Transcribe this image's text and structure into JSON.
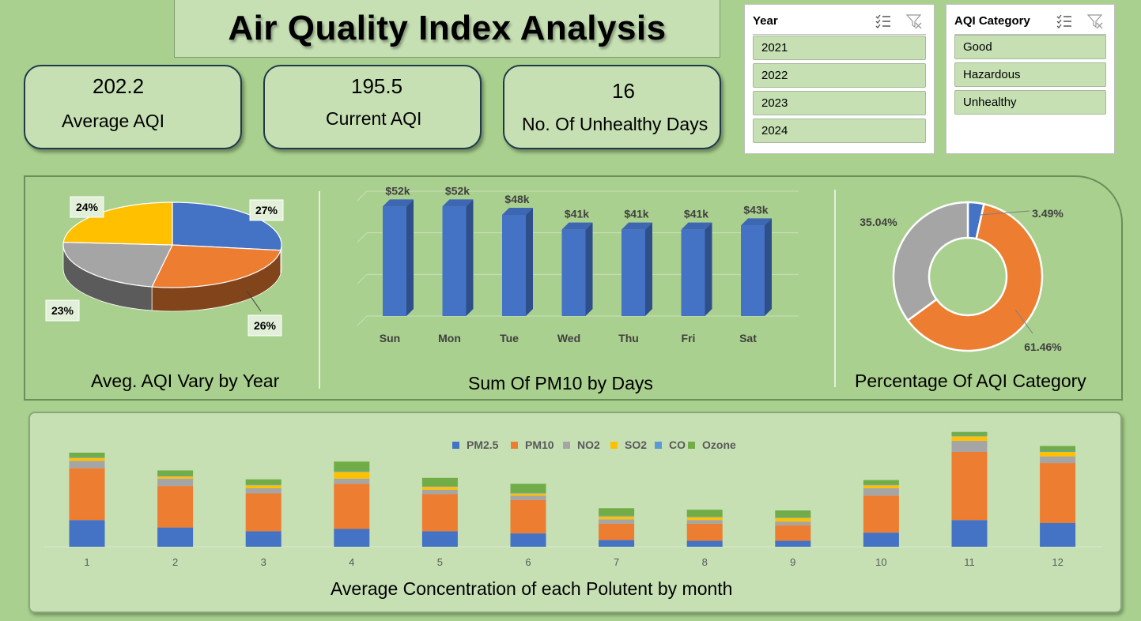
{
  "title": "Air Quality Index Analysis",
  "kpis": [
    {
      "value": "202.2",
      "label": "Average AQI"
    },
    {
      "value": "195.5",
      "label": "Current AQI"
    },
    {
      "value": "16",
      "label": "No. Of Unhealthy Days"
    }
  ],
  "slicers": {
    "year": {
      "header": "Year",
      "items": [
        "2021",
        "2022",
        "2023",
        "2024"
      ]
    },
    "category": {
      "header": "AQI Category",
      "items": [
        "Good",
        "Hazardous",
        "Unhealthy"
      ]
    }
  },
  "icons": [
    "multi-select-icon",
    "clear-filter-icon"
  ],
  "colors": {
    "blue": "#4472c4",
    "orange": "#ed7d31",
    "gray": "#a5a5a5",
    "yellow": "#ffc000",
    "lightblue": "#5b9bd5",
    "green": "#70ad47",
    "panel": "#c6e0b4",
    "background": "#a9d08e"
  },
  "chart_data": [
    {
      "type": "pie",
      "title": "Aveg. AQI Vary by Year",
      "labels": [
        "27%",
        "26%",
        "23%",
        "24%"
      ],
      "values": [
        27,
        26,
        23,
        24
      ],
      "colors": [
        "#4472c4",
        "#ed7d31",
        "#a5a5a5",
        "#ffc000"
      ]
    },
    {
      "type": "bar",
      "title": "Sum Of PM10 by Days",
      "categories": [
        "Sun",
        "Mon",
        "Tue",
        "Wed",
        "Thu",
        "Fri",
        "Sat"
      ],
      "values": [
        52,
        52,
        48,
        41,
        41,
        41,
        43
      ],
      "data_labels": [
        "$52k",
        "$52k",
        "$48k",
        "$41k",
        "$41k",
        "$41k",
        "$43k"
      ],
      "ylim": [
        0,
        60
      ]
    },
    {
      "type": "pie",
      "subtype": "donut",
      "title": "Percentage Of AQI Category",
      "labels": [
        "3.49%",
        "61.46%",
        "35.04%"
      ],
      "values": [
        3.49,
        61.46,
        35.04
      ],
      "colors": [
        "#4472c4",
        "#ed7d31",
        "#a5a5a5"
      ]
    },
    {
      "type": "bar",
      "subtype": "stacked",
      "title": "Average Concentration of each Polutent by month",
      "categories": [
        "1",
        "2",
        "3",
        "4",
        "5",
        "6",
        "7",
        "8",
        "9",
        "10",
        "11",
        "12"
      ],
      "legend_position": "top",
      "series": [
        {
          "name": "PM2.5",
          "color": "#4472c4",
          "values": [
            36,
            26,
            21,
            24,
            21,
            18,
            9,
            8,
            8,
            19,
            36,
            32
          ]
        },
        {
          "name": "PM10",
          "color": "#ed7d31",
          "values": [
            70,
            56,
            51,
            61,
            50,
            45,
            22,
            23,
            21,
            50,
            92,
            81
          ]
        },
        {
          "name": "NO2",
          "color": "#a5a5a5",
          "values": [
            10,
            10,
            7,
            7,
            6,
            6,
            6,
            5,
            5,
            10,
            15,
            9
          ]
        },
        {
          "name": "SO2",
          "color": "#ffc000",
          "values": [
            4,
            3,
            4,
            9,
            4,
            3,
            4,
            4,
            5,
            4,
            6,
            6
          ]
        },
        {
          "name": "CO",
          "color": "#5b9bd5",
          "values": [
            1,
            1,
            1,
            1,
            1,
            1,
            1,
            1,
            1,
            1,
            1,
            1
          ]
        },
        {
          "name": "Ozone",
          "color": "#70ad47",
          "values": [
            6,
            7,
            7,
            13,
            11,
            12,
            10,
            9,
            9,
            6,
            5,
            7
          ]
        }
      ],
      "ylim": [
        0,
        160
      ]
    }
  ]
}
